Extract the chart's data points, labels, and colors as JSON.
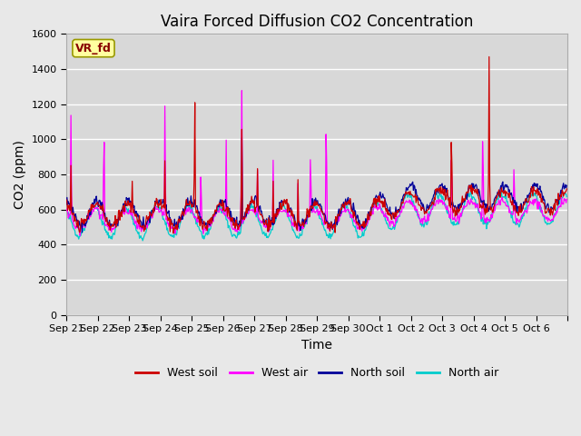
{
  "title": "Vaira Forced Diffusion CO2 Concentration",
  "ylabel": "CO2 (ppm)",
  "xlabel": "Time",
  "ylim": [
    0,
    1600
  ],
  "yticks": [
    0,
    200,
    400,
    600,
    800,
    1000,
    1200,
    1400,
    1600
  ],
  "xtick_labels": [
    "Sep 21",
    "Sep 22",
    "Sep 23",
    "Sep 24",
    "Sep 25",
    "Sep 26",
    "Sep 27",
    "Sep 28",
    "Sep 29",
    "Sep 30",
    "Oct 1",
    "Oct 2",
    "Oct 3",
    "Oct 4",
    "Oct 5",
    "Oct 6"
  ],
  "legend_labels": [
    "West soil",
    "West air",
    "North soil",
    "North air"
  ],
  "line_colors": [
    "#cc0000",
    "#ff00ff",
    "#000099",
    "#00cccc"
  ],
  "label_text": "VR_fd",
  "label_box_facecolor": "#ffffa0",
  "label_box_edgecolor": "#999900",
  "label_text_color": "#880000",
  "fig_facecolor": "#e8e8e8",
  "plot_facecolor": "#d8d8d8",
  "grid_color": "#ffffff",
  "title_fontsize": 12,
  "axis_label_fontsize": 10,
  "tick_fontsize": 8,
  "legend_fontsize": 9,
  "n_per_day": 48,
  "n_days": 16
}
